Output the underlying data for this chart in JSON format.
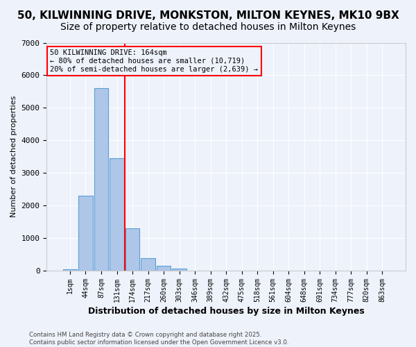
{
  "title1": "50, KILWINNING DRIVE, MONKSTON, MILTON KEYNES, MK10 9BX",
  "title2": "Size of property relative to detached houses in Milton Keynes",
  "xlabel": "Distribution of detached houses by size in Milton Keynes",
  "ylabel": "Number of detached properties",
  "footer1": "Contains HM Land Registry data © Crown copyright and database right 2025.",
  "footer2": "Contains public sector information licensed under the Open Government Licence v3.0.",
  "bin_labels": [
    "1sqm",
    "44sqm",
    "87sqm",
    "131sqm",
    "174sqm",
    "217sqm",
    "260sqm",
    "303sqm",
    "346sqm",
    "389sqm",
    "432sqm",
    "475sqm",
    "518sqm",
    "561sqm",
    "604sqm",
    "648sqm",
    "691sqm",
    "734sqm",
    "777sqm",
    "820sqm",
    "863sqm"
  ],
  "bar_heights": [
    50,
    2300,
    5600,
    3450,
    1300,
    380,
    150,
    60,
    10,
    5,
    0,
    0,
    0,
    0,
    0,
    0,
    0,
    0,
    0,
    0,
    0
  ],
  "bar_color": "#aec6e8",
  "bar_edge_color": "#5a9fd4",
  "vline_position": 3.5,
  "vline_color": "red",
  "annotation_title": "50 KILWINNING DRIVE: 164sqm",
  "annotation_line1": "← 80% of detached houses are smaller (10,719)",
  "annotation_line2": "20% of semi-detached houses are larger (2,639) →",
  "annotation_box_color": "red",
  "ylim": [
    0,
    7000
  ],
  "yticks": [
    0,
    1000,
    2000,
    3000,
    4000,
    5000,
    6000,
    7000
  ],
  "background_color": "#eef2fb",
  "grid_color": "#ffffff",
  "title1_fontsize": 11,
  "title2_fontsize": 10
}
